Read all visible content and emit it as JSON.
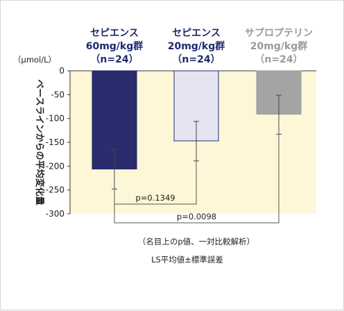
{
  "chart_data": {
    "type": "bar",
    "unit_label": "（μmol/L）",
    "ylabel": "ベースラインからの平均変化量",
    "ylim": [
      -300,
      0
    ],
    "yticks": [
      0,
      -50,
      -100,
      -150,
      -200,
      -250,
      -300
    ],
    "groups": [
      {
        "name_line1": "セピエンス",
        "name_line2": "60mg/kg群",
        "name_line3": "（n=24）",
        "value": -206,
        "err_low": -248,
        "err_high": -165,
        "fill": "#2b2c6e",
        "stroke": "#1f205a",
        "label_color": "#1f2a6e"
      },
      {
        "name_line1": "セピエンス",
        "name_line2": "20mg/kg群",
        "name_line3": "（n=24）",
        "value": -147,
        "err_low": -189,
        "err_high": -106,
        "fill": "#e3e4f0",
        "stroke": "#2b2c6e",
        "label_color": "#1f2a6e"
      },
      {
        "name_line1": "サプロプテリン",
        "name_line2": "20mg/kg群",
        "name_line3": "（n=24）",
        "value": -91,
        "err_low": -133,
        "err_high": -51,
        "fill": "#a4a4a4",
        "stroke": "#9a9a9a",
        "label_color": "#9a9a9a"
      }
    ],
    "comparisons": [
      {
        "label": "p=0.1349",
        "from": 0,
        "to": 1
      },
      {
        "label": "p=0.0098",
        "from": 0,
        "to": 2
      }
    ],
    "footnote": "（名目上のp値、一対比較解析）",
    "footnote2": "LS平均値±標準誤差",
    "plot_bg": "#fdf7d8"
  }
}
